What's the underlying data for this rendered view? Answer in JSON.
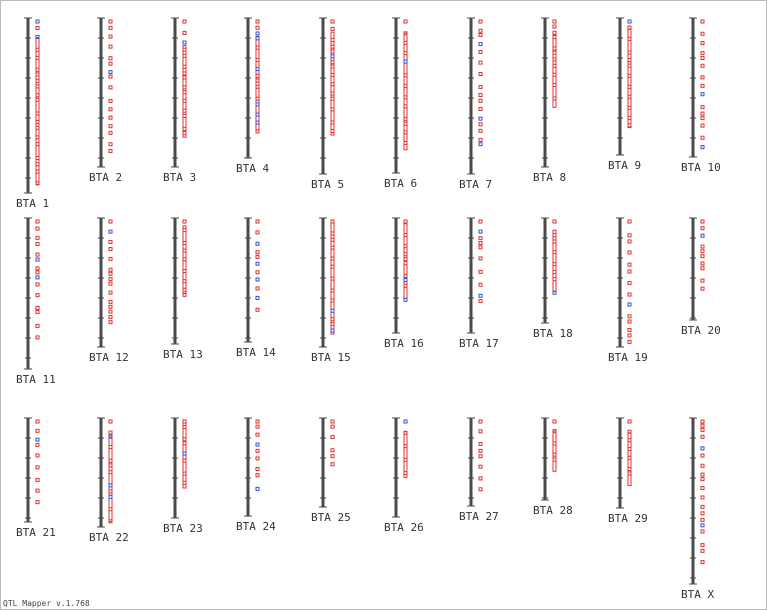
{
  "chromosomes": [
    "BTA 1",
    "BTA 2",
    "BTA 3",
    "BTA 4",
    "BTA 5",
    "BTA 6",
    "BTA 7",
    "BTA 8",
    "BTA 9",
    "BTA 10",
    "BTA 11",
    "BTA 12",
    "BTA 13",
    "BTA 14",
    "BTA 15",
    "BTA 16",
    "BTA 17",
    "BTA 18",
    "BTA 19",
    "BTA 20",
    "BTA 21",
    "BTA 22",
    "BTA 23",
    "BTA 24",
    "BTA 25",
    "BTA 26",
    "BTA 27",
    "BTA 28",
    "BTA 29",
    "BTA X"
  ],
  "footer": "QTL Mapper v.1.768"
}
